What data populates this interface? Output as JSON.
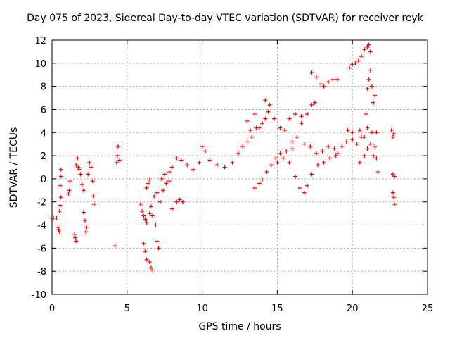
{
  "chart_data": {
    "type": "scatter",
    "title": "Day 075 of 2023, Sidereal Day-to-day VTEC variation (SDTVAR) for receiver reyk",
    "xlabel": "GPS time / hours",
    "ylabel": "SDTVAR / TECUs",
    "xlim": [
      0,
      25
    ],
    "ylim": [
      -10,
      12
    ],
    "xticks": [
      0,
      5,
      10,
      15,
      20,
      25
    ],
    "yticks": [
      -10,
      -8,
      -6,
      -4,
      -2,
      0,
      2,
      4,
      6,
      8,
      10,
      12
    ],
    "grid": true,
    "marker": "+",
    "color": "#ff0000",
    "series": [
      {
        "points": [
          [
            0.0,
            -3.4
          ],
          [
            0.1,
            -3.4
          ],
          [
            0.3,
            -3.4
          ],
          [
            0.4,
            -4.2
          ],
          [
            0.45,
            -4.4
          ],
          [
            0.5,
            -4.6
          ],
          [
            0.5,
            -2.8
          ],
          [
            0.55,
            -2.3
          ],
          [
            0.6,
            -1.6
          ],
          [
            0.55,
            -0.6
          ],
          [
            0.6,
            0.2
          ],
          [
            0.6,
            0.8
          ],
          [
            1.1,
            -1.3
          ],
          [
            1.15,
            -1.0
          ],
          [
            1.2,
            -0.2
          ],
          [
            1.5,
            -4.8
          ],
          [
            1.55,
            -5.1
          ],
          [
            1.6,
            -5.4
          ],
          [
            1.6,
            1.2
          ],
          [
            1.7,
            1.8
          ],
          [
            1.75,
            1.0
          ],
          [
            1.8,
            0.8
          ],
          [
            1.9,
            0.4
          ],
          [
            2.0,
            -0.5
          ],
          [
            2.1,
            -1.0
          ],
          [
            2.1,
            -2.9
          ],
          [
            2.2,
            -3.6
          ],
          [
            2.3,
            -4.2
          ],
          [
            2.25,
            -4.6
          ],
          [
            2.4,
            0.4
          ],
          [
            2.5,
            1.4
          ],
          [
            2.6,
            1.0
          ],
          [
            2.7,
            -0.2
          ],
          [
            2.75,
            -1.5
          ],
          [
            2.8,
            -2.2
          ],
          [
            4.2,
            -5.8
          ],
          [
            4.3,
            1.4
          ],
          [
            4.35,
            2.0
          ],
          [
            4.4,
            2.8
          ],
          [
            4.5,
            1.6
          ],
          [
            5.9,
            -2.2
          ],
          [
            6.0,
            -2.8
          ],
          [
            6.1,
            -3.2
          ],
          [
            6.2,
            -3.5
          ],
          [
            6.3,
            -3.8
          ],
          [
            6.1,
            -5.6
          ],
          [
            6.2,
            -6.3
          ],
          [
            6.3,
            -7.0
          ],
          [
            6.5,
            -7.2
          ],
          [
            6.6,
            -7.7
          ],
          [
            6.7,
            -7.9
          ],
          [
            6.3,
            -0.8
          ],
          [
            6.4,
            -0.4
          ],
          [
            6.5,
            -0.1
          ],
          [
            6.5,
            -3.0
          ],
          [
            6.6,
            -2.4
          ],
          [
            6.7,
            -3.2
          ],
          [
            6.9,
            -4.0
          ],
          [
            7.0,
            -5.4
          ],
          [
            7.1,
            -6.0
          ],
          [
            6.8,
            -1.5
          ],
          [
            7.0,
            -1.2
          ],
          [
            7.2,
            -2.0
          ],
          [
            7.4,
            -1.0
          ],
          [
            7.6,
            -0.4
          ],
          [
            7.8,
            -0.2
          ],
          [
            7.3,
            0.0
          ],
          [
            7.5,
            0.4
          ],
          [
            7.8,
            0.6
          ],
          [
            8.0,
            -2.6
          ],
          [
            8.3,
            -2.0
          ],
          [
            8.5,
            -1.8
          ],
          [
            8.7,
            -2.0
          ],
          [
            8.0,
            1.0
          ],
          [
            8.3,
            1.8
          ],
          [
            8.6,
            1.6
          ],
          [
            9.0,
            1.2
          ],
          [
            9.4,
            0.8
          ],
          [
            9.8,
            1.4
          ],
          [
            10.0,
            2.8
          ],
          [
            10.2,
            2.4
          ],
          [
            10.5,
            1.6
          ],
          [
            11.0,
            1.2
          ],
          [
            11.5,
            1.0
          ],
          [
            12.0,
            1.4
          ],
          [
            12.4,
            2.2
          ],
          [
            12.7,
            2.8
          ],
          [
            13.0,
            3.2
          ],
          [
            13.3,
            3.6
          ],
          [
            13.6,
            4.4
          ],
          [
            14.0,
            4.8
          ],
          [
            13.0,
            5.0
          ],
          [
            13.2,
            4.2
          ],
          [
            13.5,
            5.6
          ],
          [
            13.8,
            4.4
          ],
          [
            14.2,
            5.2
          ],
          [
            14.5,
            6.4
          ],
          [
            14.2,
            6.8
          ],
          [
            14.4,
            5.8
          ],
          [
            14.8,
            5.2
          ],
          [
            15.2,
            4.4
          ],
          [
            15.5,
            4.2
          ],
          [
            15.8,
            5.2
          ],
          [
            16.2,
            5.6
          ],
          [
            16.6,
            5.4
          ],
          [
            13.5,
            -0.8
          ],
          [
            13.8,
            -0.4
          ],
          [
            14.0,
            -0.1
          ],
          [
            14.3,
            0.6
          ],
          [
            14.6,
            1.2
          ],
          [
            14.9,
            1.8
          ],
          [
            15.2,
            2.2
          ],
          [
            15.6,
            2.4
          ],
          [
            16.0,
            2.6
          ],
          [
            15.0,
            1.4
          ],
          [
            15.4,
            1.8
          ],
          [
            15.8,
            1.4
          ],
          [
            16.2,
            0.2
          ],
          [
            16.5,
            -0.8
          ],
          [
            16.8,
            -1.2
          ],
          [
            17.0,
            -0.6
          ],
          [
            17.3,
            0.4
          ],
          [
            17.7,
            1.2
          ],
          [
            18.1,
            1.4
          ],
          [
            18.5,
            1.8
          ],
          [
            18.9,
            2.0
          ],
          [
            16.0,
            3.2
          ],
          [
            16.3,
            3.6
          ],
          [
            16.6,
            4.8
          ],
          [
            17.0,
            5.6
          ],
          [
            17.3,
            6.4
          ],
          [
            17.5,
            6.6
          ],
          [
            17.3,
            9.2
          ],
          [
            17.6,
            8.8
          ],
          [
            17.9,
            8.2
          ],
          [
            18.1,
            8.0
          ],
          [
            18.4,
            8.4
          ],
          [
            18.7,
            8.6
          ],
          [
            19.0,
            8.6
          ],
          [
            16.8,
            3.0
          ],
          [
            17.2,
            2.8
          ],
          [
            17.6,
            2.2
          ],
          [
            18.0,
            2.4
          ],
          [
            18.4,
            2.8
          ],
          [
            18.8,
            2.6
          ],
          [
            19.0,
            2.2
          ],
          [
            19.3,
            2.8
          ],
          [
            19.6,
            3.2
          ],
          [
            20.0,
            3.4
          ],
          [
            20.3,
            3.0
          ],
          [
            20.6,
            3.6
          ],
          [
            19.7,
            4.2
          ],
          [
            20.0,
            4.0
          ],
          [
            20.5,
            4.2
          ],
          [
            20.8,
            3.6
          ],
          [
            21.0,
            4.4
          ],
          [
            21.3,
            4.0
          ],
          [
            20.5,
            1.4
          ],
          [
            20.8,
            2.0
          ],
          [
            21.0,
            2.6
          ],
          [
            21.2,
            3.0
          ],
          [
            19.8,
            9.6
          ],
          [
            20.0,
            9.9
          ],
          [
            20.2,
            10.0
          ],
          [
            20.4,
            10.2
          ],
          [
            20.6,
            10.6
          ],
          [
            20.8,
            11.2
          ],
          [
            21.0,
            11.4
          ],
          [
            21.1,
            11.6
          ],
          [
            21.2,
            11.0
          ],
          [
            20.9,
            5.6
          ],
          [
            21.0,
            7.8
          ],
          [
            21.1,
            8.6
          ],
          [
            21.2,
            9.4
          ],
          [
            21.3,
            8.0
          ],
          [
            21.4,
            6.6
          ],
          [
            21.5,
            7.2
          ],
          [
            21.6,
            4.0
          ],
          [
            21.5,
            2.8
          ],
          [
            21.6,
            1.8
          ],
          [
            21.4,
            2.0
          ],
          [
            21.7,
            0.6
          ],
          [
            22.6,
            4.2
          ],
          [
            22.7,
            3.6
          ],
          [
            22.75,
            3.9
          ],
          [
            22.7,
            0.4
          ],
          [
            22.8,
            0.2
          ],
          [
            22.7,
            -1.2
          ],
          [
            22.75,
            -1.6
          ],
          [
            22.8,
            -2.2
          ]
        ]
      }
    ]
  }
}
